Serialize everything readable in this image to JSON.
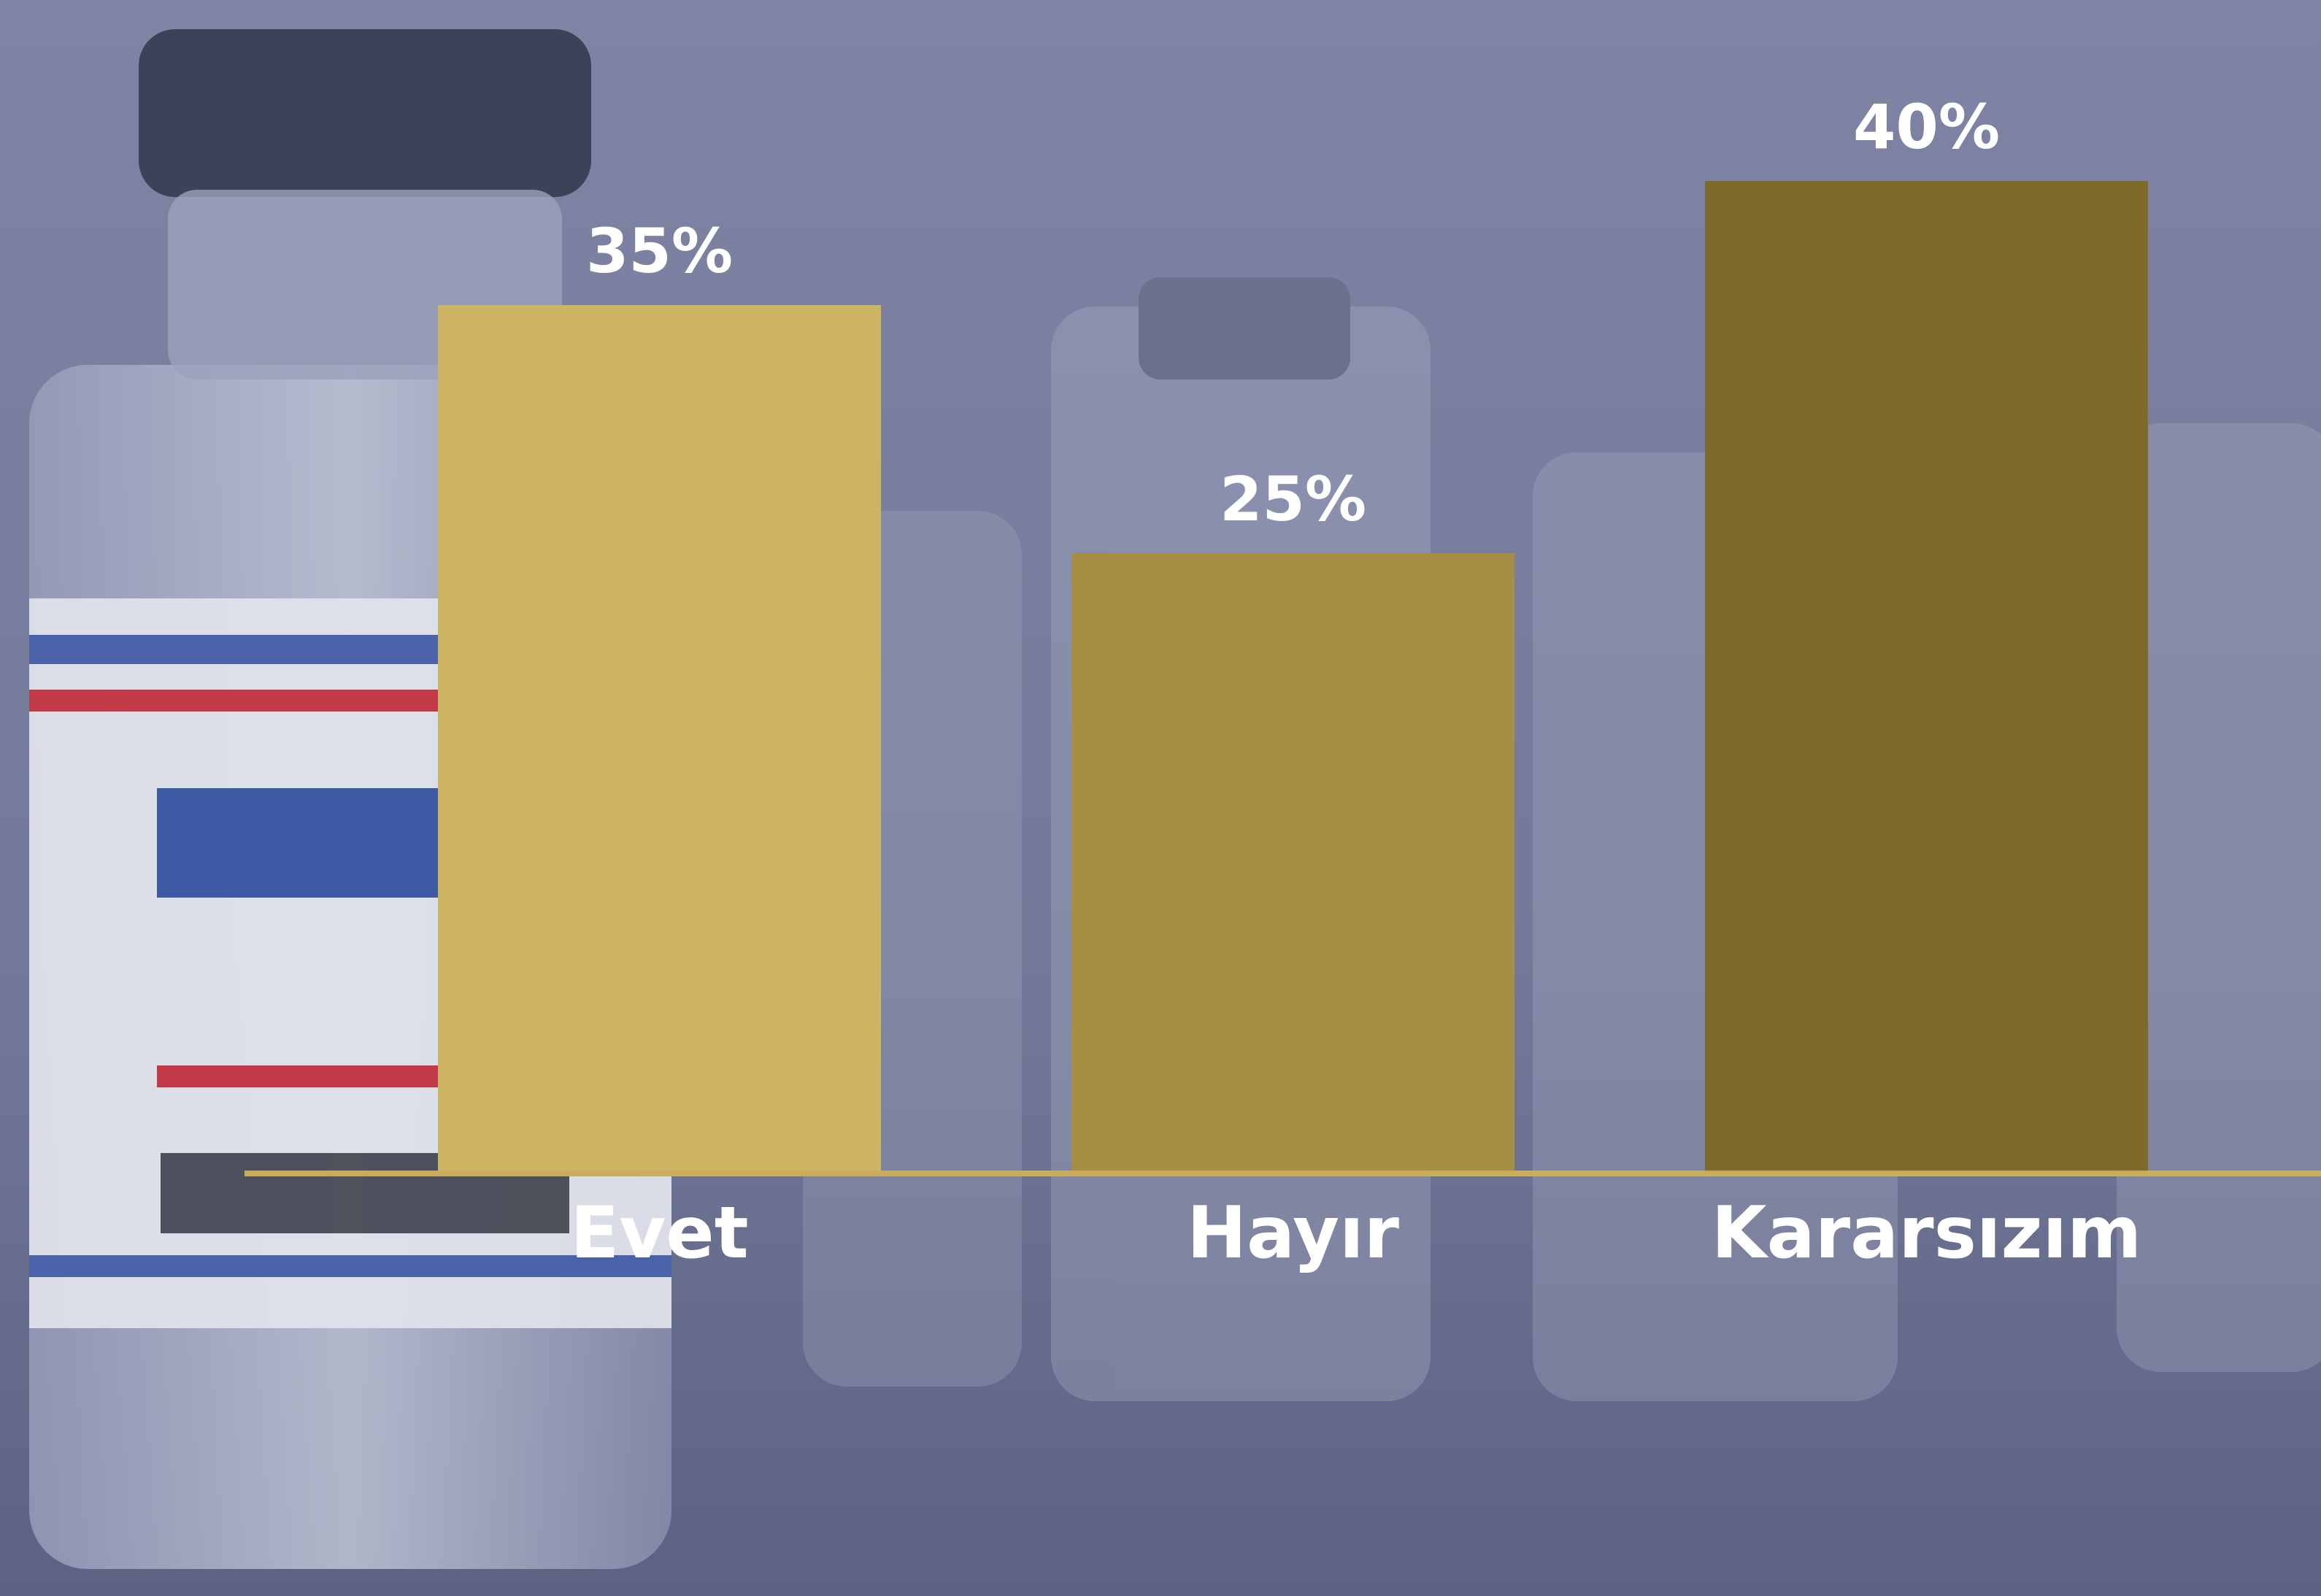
{
  "chart_data": {
    "type": "bar",
    "categories": [
      "Evet",
      "Hayır",
      "Kararsızım"
    ],
    "values": [
      35,
      25,
      40
    ],
    "value_labels": [
      "35%",
      "25%",
      "40%"
    ],
    "colors": [
      "#cdb462",
      "#a68f42",
      "#7f6a2a"
    ],
    "baseline_color": "#c9ad5c"
  }
}
